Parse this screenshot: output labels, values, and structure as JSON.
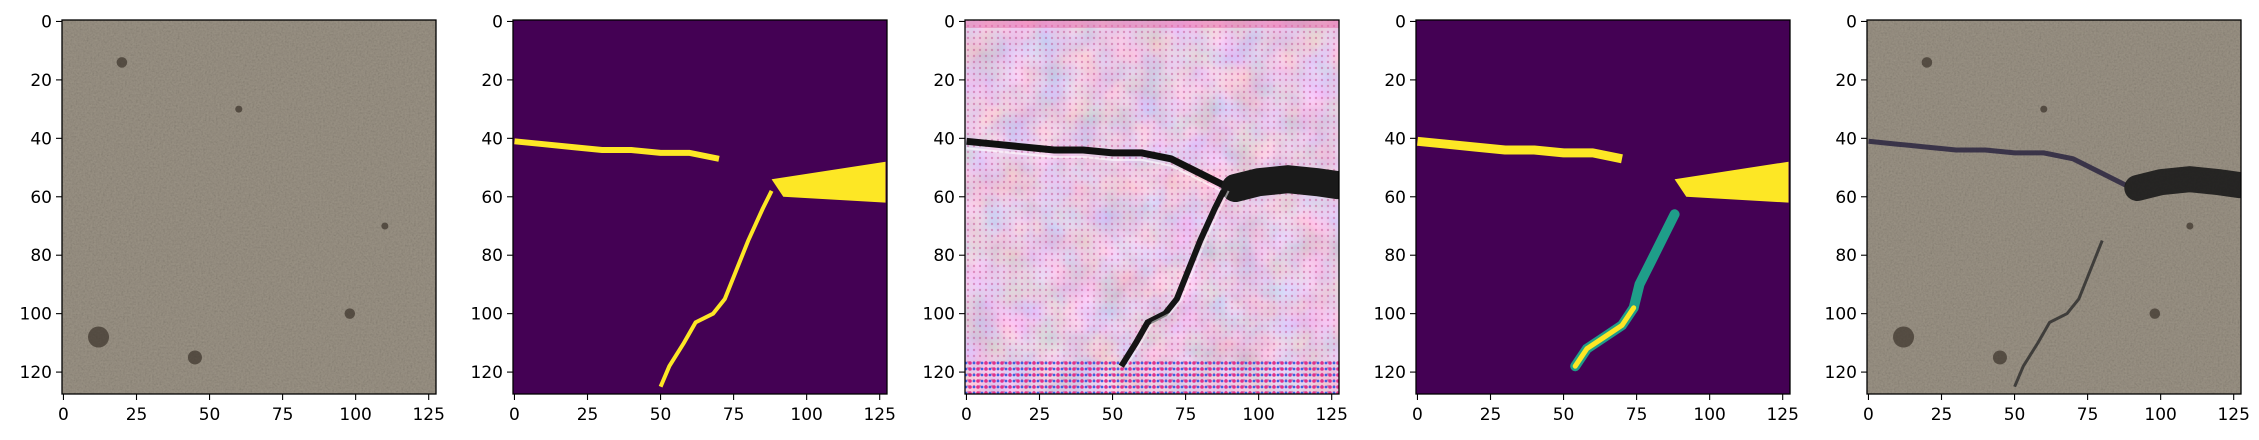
{
  "chart_data": {
    "type": "image-grid",
    "panels": [
      {
        "id": "concrete-input",
        "content": "grayscale-tan concrete texture photo",
        "x_ticks": [
          "0",
          "25",
          "50",
          "75",
          "100",
          "125"
        ],
        "y_ticks": [
          "0",
          "20",
          "40",
          "60",
          "80",
          "100",
          "120"
        ]
      },
      {
        "id": "mask-ground-truth",
        "content": "binary crack mask (viridis: purple background, yellow crack)",
        "x_ticks": [
          "0",
          "25",
          "50",
          "75",
          "100",
          "125"
        ],
        "y_ticks": [
          "0",
          "20",
          "40",
          "60",
          "80",
          "100",
          "120"
        ]
      },
      {
        "id": "generated-crack-image",
        "content": "synthesized pink/white textured image with dark cracks",
        "x_ticks": [
          "0",
          "25",
          "50",
          "75",
          "100",
          "125"
        ],
        "y_ticks": [
          "0",
          "20",
          "40",
          "60",
          "80",
          "100",
          "120"
        ]
      },
      {
        "id": "predicted-mask",
        "content": "predicted crack mask (viridis)",
        "x_ticks": [
          "0",
          "25",
          "50",
          "75",
          "100",
          "125"
        ],
        "y_ticks": [
          "0",
          "20",
          "40",
          "60",
          "80",
          "100",
          "120"
        ]
      },
      {
        "id": "blended-output",
        "content": "concrete texture with dark crack overlaid",
        "x_ticks": [
          "0",
          "25",
          "50",
          "75",
          "100",
          "125"
        ],
        "y_ticks": [
          "0",
          "20",
          "40",
          "60",
          "80",
          "100",
          "120"
        ]
      }
    ],
    "pixel_range": [
      0,
      127
    ],
    "colors": {
      "viridis_background": "#440154",
      "viridis_high": "#fde725",
      "concrete": "#9c9486",
      "crack_dark": "#1a1a1a",
      "generated_pink": "#d9a3bf"
    }
  }
}
